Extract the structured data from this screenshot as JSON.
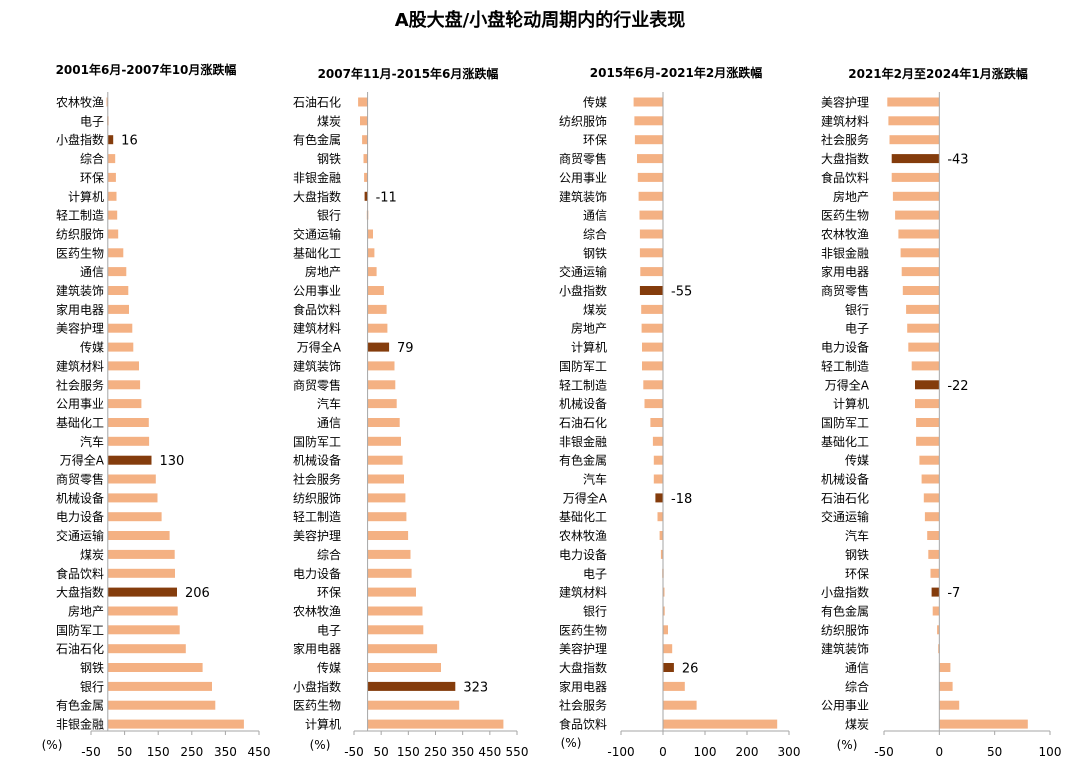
{
  "title": "A股大盘/小盘轮动周期内的行业表现",
  "colors": {
    "bar": "#F4B183",
    "highlight": "#843C0C",
    "axis": "#A6A6A6"
  },
  "chart_data": [
    {
      "type": "bar",
      "orientation": "horizontal",
      "title": "2001年6月-2007年10月涨跌幅",
      "unit": "(%)",
      "xlim": [
        -50,
        450
      ],
      "ticks": [
        -50,
        50,
        150,
        250,
        350,
        450
      ],
      "categories": [
        "农林牧渔",
        "电子",
        "小盘指数",
        "综合",
        "环保",
        "计算机",
        "轻工制造",
        "纺织服饰",
        "医药生物",
        "通信",
        "建筑装饰",
        "家用电器",
        "美容护理",
        "传媒",
        "建筑材料",
        "社会服务",
        "公用事业",
        "基础化工",
        "汽车",
        "万得全A",
        "商贸零售",
        "机械设备",
        "电力设备",
        "交通运输",
        "煤炭",
        "食品饮料",
        "大盘指数",
        "房地产",
        "国防军工",
        "石油石化",
        "钢铁",
        "银行",
        "有色金属",
        "非银金融"
      ],
      "values": [
        -4,
        -2,
        16,
        22,
        24,
        26,
        28,
        31,
        46,
        55,
        61,
        63,
        73,
        76,
        93,
        96,
        100,
        122,
        123,
        130,
        143,
        148,
        160,
        184,
        199,
        200,
        206,
        208,
        214,
        232,
        282,
        310,
        320,
        405
      ],
      "labeled": {
        "小盘指数": "16",
        "万得全A": "130",
        "大盘指数": "206"
      }
    },
    {
      "type": "bar",
      "orientation": "horizontal",
      "title": "2007年11月-2015年6月涨跌幅",
      "unit": "(%)",
      "xlim": [
        -50,
        550
      ],
      "ticks": [
        -50,
        50,
        150,
        250,
        350,
        450,
        550
      ],
      "categories": [
        "石油石化",
        "煤炭",
        "有色金属",
        "钢铁",
        "非银金融",
        "大盘指数",
        "银行",
        "交通运输",
        "基础化工",
        "房地产",
        "公用事业",
        "食品饮料",
        "建筑材料",
        "万得全A",
        "建筑装饰",
        "商贸零售",
        "汽车",
        "通信",
        "国防军工",
        "机械设备",
        "社会服务",
        "纺织服饰",
        "轻工制造",
        "美容护理",
        "综合",
        "电力设备",
        "环保",
        "农林牧渔",
        "电子",
        "家用电器",
        "传媒",
        "小盘指数",
        "医药生物",
        "计算机"
      ],
      "values": [
        -35,
        -28,
        -20,
        -15,
        -13,
        -11,
        -3,
        20,
        25,
        33,
        60,
        70,
        73,
        79,
        99,
        102,
        107,
        118,
        123,
        129,
        134,
        139,
        143,
        149,
        158,
        162,
        178,
        202,
        205,
        256,
        270,
        323,
        337,
        500
      ],
      "labeled": {
        "大盘指数": "-11",
        "万得全A": "79",
        "小盘指数": "323"
      }
    },
    {
      "type": "bar",
      "orientation": "horizontal",
      "title": "2015年6月-2021年2月涨跌幅",
      "unit": "(%)",
      "xlim": [
        -100,
        300
      ],
      "ticks": [
        -100,
        0,
        100,
        200,
        300
      ],
      "categories": [
        "传媒",
        "纺织服饰",
        "环保",
        "商贸零售",
        "公用事业",
        "建筑装饰",
        "通信",
        "综合",
        "钢铁",
        "交通运输",
        "小盘指数",
        "煤炭",
        "房地产",
        "计算机",
        "国防军工",
        "轻工制造",
        "机械设备",
        "石油石化",
        "非银金融",
        "有色金属",
        "汽车",
        "万得全A",
        "基础化工",
        "农林牧渔",
        "电力设备",
        "电子",
        "建筑材料",
        "银行",
        "医药生物",
        "美容护理",
        "大盘指数",
        "家用电器",
        "社会服务",
        "食品饮料"
      ],
      "values": [
        -70,
        -68,
        -67,
        -62,
        -60,
        -58,
        -56,
        -55,
        -55,
        -54,
        -55,
        -52,
        -51,
        -50,
        -50,
        -47,
        -44,
        -30,
        -24,
        -22,
        -22,
        -18,
        -13,
        -8,
        -5,
        -2,
        0,
        4,
        12,
        22,
        26,
        52,
        80,
        272
      ],
      "labeled": {
        "小盘指数": "-55",
        "万得全A": "-18",
        "大盘指数": "26"
      }
    },
    {
      "type": "bar",
      "orientation": "horizontal",
      "title": "2021年2月至2024年1月涨跌幅",
      "unit": "(%)",
      "xlim": [
        -50,
        100
      ],
      "ticks": [
        -50,
        0,
        50,
        100
      ],
      "categories": [
        "美容护理",
        "建筑材料",
        "社会服务",
        "大盘指数",
        "食品饮料",
        "房地产",
        "医药生物",
        "农林牧渔",
        "非银金融",
        "家用电器",
        "商贸零售",
        "银行",
        "电子",
        "电力设备",
        "轻工制造",
        "万得全A",
        "计算机",
        "国防军工",
        "基础化工",
        "传媒",
        "机械设备",
        "石油石化",
        "交通运输",
        "汽车",
        "钢铁",
        "环保",
        "小盘指数",
        "有色金属",
        "纺织服饰",
        "建筑装饰",
        "通信",
        "综合",
        "公用事业",
        "煤炭"
      ],
      "values": [
        -47,
        -46,
        -45,
        -43,
        -43,
        -42,
        -40,
        -37,
        -35,
        -34,
        -33,
        -30,
        -29,
        -28,
        -25,
        -22,
        -22,
        -21,
        -21,
        -18,
        -16,
        -14,
        -13,
        -11,
        -10,
        -8,
        -7,
        -6,
        -2,
        -1,
        10,
        12,
        18,
        80
      ],
      "labeled": {
        "大盘指数": "-43",
        "万得全A": "-22",
        "小盘指数": "-7"
      }
    }
  ]
}
